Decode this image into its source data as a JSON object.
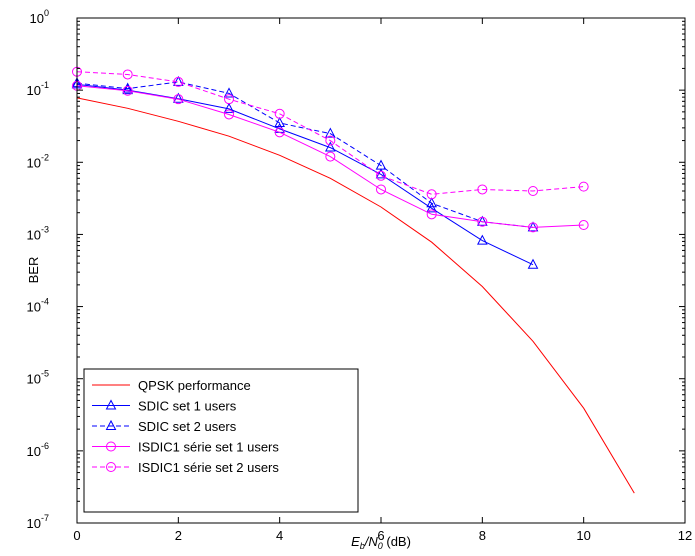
{
  "chart_data": {
    "type": "line",
    "xlabel": {
      "main": "E",
      "sub1": "b",
      "slash": "/N",
      "sub2": "0",
      "unit": " (dB)"
    },
    "ylabel": "BER",
    "xlim": [
      0,
      12
    ],
    "ylim": [
      1e-07,
      1
    ],
    "yscale": "log",
    "grid": false,
    "legend_position": "bottom-left",
    "xticks": [
      {
        "value": 0,
        "label": "0"
      },
      {
        "value": 2,
        "label": "2"
      },
      {
        "value": 4,
        "label": "4"
      },
      {
        "value": 6,
        "label": "6"
      },
      {
        "value": 8,
        "label": "8"
      },
      {
        "value": 10,
        "label": "10"
      },
      {
        "value": 12,
        "label": "12"
      }
    ],
    "yticks": [
      {
        "value": 1e-07,
        "base": "10",
        "exp": "-7"
      },
      {
        "value": 1e-06,
        "base": "10",
        "exp": "-6"
      },
      {
        "value": 1e-05,
        "base": "10",
        "exp": "-5"
      },
      {
        "value": 0.0001,
        "base": "10",
        "exp": "-4"
      },
      {
        "value": 0.001,
        "base": "10",
        "exp": "-3"
      },
      {
        "value": 0.01,
        "base": "10",
        "exp": "-2"
      },
      {
        "value": 0.1,
        "base": "10",
        "exp": "-1"
      },
      {
        "value": 1,
        "base": "10",
        "exp": "0"
      }
    ],
    "series": [
      {
        "name": "QPSK performance",
        "color": "#ff0000",
        "dash": "solid",
        "marker": "none",
        "x": [
          0,
          1,
          2,
          3,
          4,
          5,
          6,
          7,
          8,
          9,
          10,
          11
        ],
        "y": [
          0.078,
          0.056,
          0.037,
          0.023,
          0.0125,
          0.006,
          0.0024,
          0.00078,
          0.00019,
          3.3e-05,
          3.9e-06,
          2.6e-07
        ]
      },
      {
        "name": "SDIC set 1 users",
        "color": "#0000ff",
        "dash": "solid",
        "marker": "triangle",
        "x": [
          0,
          1,
          2,
          3,
          4,
          5,
          6,
          7,
          8,
          9
        ],
        "y": [
          0.12,
          0.1,
          0.076,
          0.055,
          0.029,
          0.016,
          0.0068,
          0.0023,
          0.00082,
          0.00038
        ]
      },
      {
        "name": "SDIC set 2 users",
        "color": "#0000ff",
        "dash": "dashed",
        "marker": "triangle",
        "x": [
          0,
          1,
          2,
          3,
          4,
          5,
          6,
          7,
          8,
          9
        ],
        "y": [
          0.125,
          0.105,
          0.13,
          0.09,
          0.035,
          0.025,
          0.009,
          0.0027,
          0.0015,
          0.00125
        ]
      },
      {
        "name": "ISDIC1 série set 1 users",
        "color": "#ff00ff",
        "dash": "solid",
        "marker": "circle",
        "x": [
          0,
          1,
          2,
          3,
          4,
          5,
          6,
          7,
          8,
          9,
          10
        ],
        "y": [
          0.115,
          0.098,
          0.075,
          0.046,
          0.026,
          0.012,
          0.0042,
          0.0019,
          0.0015,
          0.00125,
          0.00135
        ]
      },
      {
        "name": "ISDIC1 série set 2 users",
        "color": "#ff00ff",
        "dash": "dashed",
        "marker": "circle",
        "x": [
          0,
          1,
          2,
          3,
          4,
          5,
          6,
          7,
          8,
          9,
          10
        ],
        "y": [
          0.18,
          0.165,
          0.13,
          0.075,
          0.047,
          0.02,
          0.0065,
          0.0036,
          0.0042,
          0.004,
          0.0046
        ]
      }
    ]
  }
}
